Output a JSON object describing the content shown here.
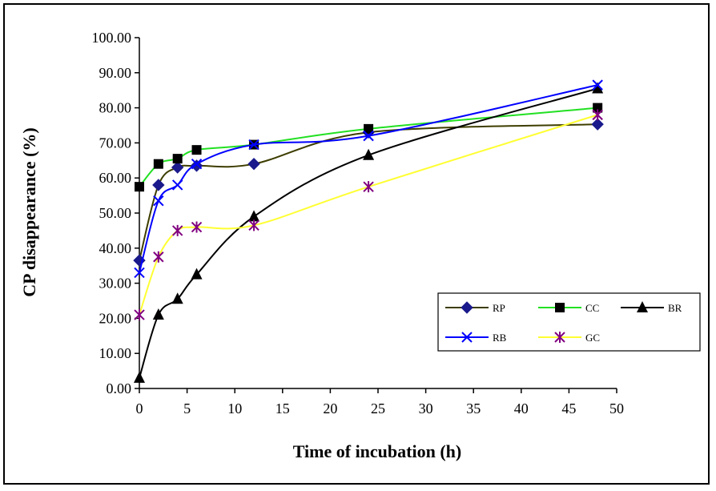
{
  "chart_data": {
    "type": "line",
    "title": "",
    "xlabel": "Time of incubation (h)",
    "ylabel": "CP disappearance (%)",
    "xlim": [
      0,
      50
    ],
    "ylim": [
      0,
      100
    ],
    "x_ticks": [
      "0",
      "5",
      "10",
      "15",
      "20",
      "25",
      "30",
      "35",
      "40",
      "45",
      "50"
    ],
    "y_ticks": [
      "0.00",
      "10.00",
      "20.00",
      "30.00",
      "40.00",
      "50.00",
      "60.00",
      "70.00",
      "80.00",
      "90.00",
      "100.00"
    ],
    "grid": false,
    "legend_position": "bottom-right",
    "x": [
      0,
      2,
      4,
      6,
      12,
      24,
      48
    ],
    "series": [
      {
        "name": "RP",
        "values": [
          36.5,
          58.0,
          63.0,
          63.5,
          64.0,
          73.0,
          75.3
        ],
        "color": "#3d3d00",
        "marker_color": "#1a1a8c",
        "marker": "diamond"
      },
      {
        "name": "CC",
        "values": [
          57.5,
          64.0,
          65.5,
          68.0,
          69.5,
          74.0,
          80.0
        ],
        "color": "#22e022",
        "marker_color": "#000000",
        "marker": "square"
      },
      {
        "name": "BR",
        "values": [
          3.0,
          21.0,
          25.5,
          32.5,
          49.0,
          66.5,
          85.5
        ],
        "color": "#000000",
        "marker_color": "#000000",
        "marker": "triangle"
      },
      {
        "name": "RB",
        "values": [
          33.0,
          53.5,
          58.0,
          64.0,
          69.5,
          72.0,
          86.5
        ],
        "color": "#0000ff",
        "marker_color": "#0000ff",
        "marker": "x"
      },
      {
        "name": "GC",
        "values": [
          21.0,
          37.5,
          45.0,
          46.0,
          46.5,
          57.5,
          78.0
        ],
        "color": "#ffff33",
        "marker_color": "#800080",
        "marker": "star"
      }
    ]
  }
}
